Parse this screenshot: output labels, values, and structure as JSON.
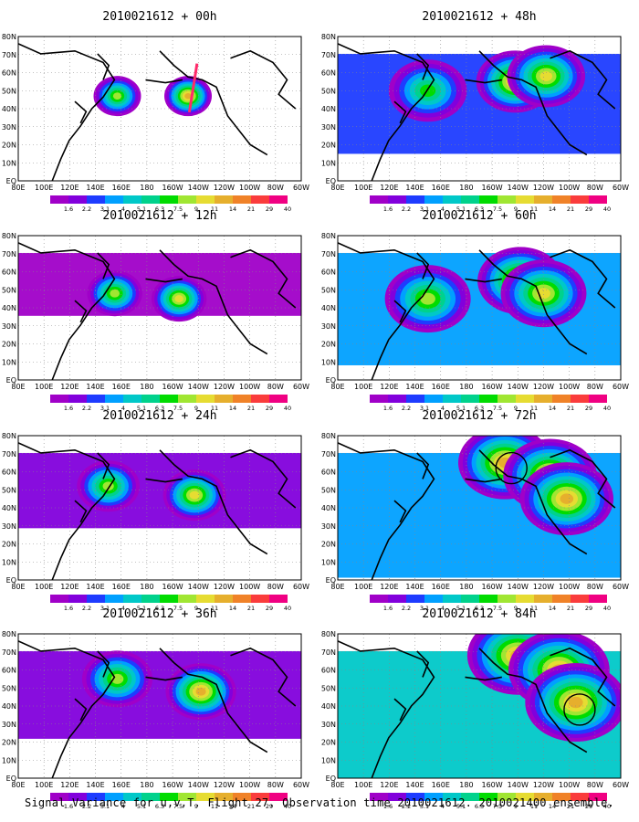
{
  "figure": {
    "caption": "Signal Variance for u,v,T. Flight 27. Observation time 2010021612. 2010021400 ensemble."
  },
  "colors": {
    "scale": [
      "#a000c8",
      "#8200dc",
      "#1e3cff",
      "#00a0ff",
      "#00c8c8",
      "#00d28c",
      "#00dc00",
      "#a0e632",
      "#e6dc32",
      "#e6af2d",
      "#f08228",
      "#fa3c3c",
      "#f00082"
    ],
    "land_outline": "#000000",
    "flight_track": "#ff2a6a"
  },
  "colorbar": {
    "labels": [
      "1.6",
      "2.2",
      "3.1",
      "4",
      "5.1",
      "6.3",
      "7.5",
      "9",
      "11",
      "14",
      "21",
      "29",
      "40"
    ]
  },
  "axes": {
    "x_ticks": [
      "80E",
      "100E",
      "120E",
      "140E",
      "160E",
      "180",
      "160W",
      "140W",
      "120W",
      "100W",
      "80W",
      "60W"
    ],
    "y_ticks": [
      "80N",
      "70N",
      "60N",
      "50N",
      "40N",
      "30N",
      "20N",
      "10N",
      "EQ"
    ]
  },
  "chart_data": [
    {
      "type": "heatmap",
      "title": "2010021612 + 00h",
      "lead_hours": 0,
      "x_range": [
        "80E",
        "60W"
      ],
      "y_range": [
        "EQ",
        "80N"
      ],
      "maxima": [
        {
          "lon": 157,
          "lat": 47,
          "value": 9
        },
        {
          "lon": -148,
          "lat": 47,
          "value": 14
        }
      ],
      "flight_track": [
        {
          "lon": -147,
          "lat": 38
        },
        {
          "lon": -141,
          "lat": 65
        }
      ]
    },
    {
      "type": "heatmap",
      "title": "2010021612 + 12h",
      "lead_hours": 12,
      "x_range": [
        "80E",
        "60W"
      ],
      "y_range": [
        "EQ",
        "80N"
      ],
      "maxima": [
        {
          "lon": 155,
          "lat": 48,
          "value": 9
        },
        {
          "lon": -155,
          "lat": 45,
          "value": 11
        }
      ]
    },
    {
      "type": "heatmap",
      "title": "2010021612 + 24h",
      "lead_hours": 24,
      "x_range": [
        "80E",
        "60W"
      ],
      "y_range": [
        "EQ",
        "80N"
      ],
      "maxima": [
        {
          "lon": 150,
          "lat": 52,
          "value": 9
        },
        {
          "lon": -143,
          "lat": 47,
          "value": 11
        }
      ]
    },
    {
      "type": "heatmap",
      "title": "2010021612 + 36h",
      "lead_hours": 36,
      "x_range": [
        "80E",
        "60W"
      ],
      "y_range": [
        "EQ",
        "80N"
      ],
      "maxima": [
        {
          "lon": 157,
          "lat": 55,
          "value": 9
        },
        {
          "lon": -138,
          "lat": 48,
          "value": 14
        }
      ]
    },
    {
      "type": "heatmap",
      "title": "2010021612 + 48h",
      "lead_hours": 48,
      "x_range": [
        "80E",
        "60W"
      ],
      "y_range": [
        "EQ",
        "80N"
      ],
      "maxima": [
        {
          "lon": 150,
          "lat": 50,
          "value": 7.5
        },
        {
          "lon": -142,
          "lat": 55,
          "value": 14
        },
        {
          "lon": -118,
          "lat": 58,
          "value": 11
        }
      ]
    },
    {
      "type": "heatmap",
      "title": "2010021612 + 60h",
      "lead_hours": 60,
      "x_range": [
        "80E",
        "60W"
      ],
      "y_range": [
        "EQ",
        "80N"
      ],
      "maxima": [
        {
          "lon": 150,
          "lat": 45,
          "value": 9
        },
        {
          "lon": -138,
          "lat": 55,
          "value": 14
        },
        {
          "lon": -120,
          "lat": 48,
          "value": 11
        }
      ]
    },
    {
      "type": "heatmap",
      "title": "2010021612 + 72h",
      "lead_hours": 72,
      "x_range": [
        "80E",
        "60W"
      ],
      "y_range": [
        "EQ",
        "80N"
      ],
      "maxima": [
        {
          "lon": -150,
          "lat": 65,
          "value": 14
        },
        {
          "lon": -115,
          "lat": 58,
          "value": 14
        },
        {
          "lon": -102,
          "lat": 45,
          "value": 14
        }
      ],
      "circles": [
        {
          "lon": -145,
          "lat": 62
        }
      ]
    },
    {
      "type": "heatmap",
      "title": "2010021612 + 84h",
      "lead_hours": 84,
      "x_range": [
        "80E",
        "60W"
      ],
      "y_range": [
        "EQ",
        "80N"
      ],
      "maxima": [
        {
          "lon": -140,
          "lat": 68,
          "value": 14
        },
        {
          "lon": -108,
          "lat": 60,
          "value": 14
        },
        {
          "lon": -95,
          "lat": 42,
          "value": 14
        }
      ],
      "circles": [
        {
          "lon": -92,
          "lat": 38
        }
      ]
    }
  ]
}
